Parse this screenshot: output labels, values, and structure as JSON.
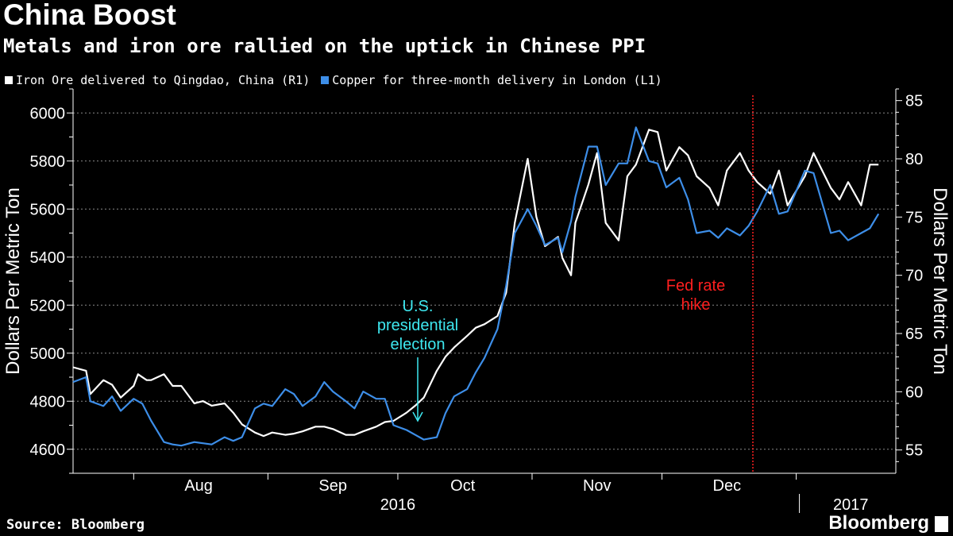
{
  "header": {
    "title": "China Boost",
    "subtitle": "Metals and iron ore rallied on the uptick in Chinese PPI"
  },
  "legend": {
    "iron_label": "Iron Ore delivered to Qingdao, China (R1)",
    "copper_label": "Copper for three-month delivery in London (L1)"
  },
  "footer": {
    "source": "Source: Bloomberg",
    "brand": "Bloomberg"
  },
  "colors": {
    "background": "#000000",
    "iron": "#ffffff",
    "copper": "#3d8ee8",
    "election_annotation": "#3ee8f0",
    "fed_annotation": "#ff1f1f",
    "grid": "#8a8a8a"
  },
  "chart_data": {
    "type": "line",
    "title": "China Boost",
    "subtitle": "Metals and iron ore rallied on the uptick in Chinese PPI",
    "xlabel": "",
    "ylabel_left": "Dollars Per Metric Ton",
    "ylabel_right": "Dollars Per Metric Ton",
    "ylim_left": [
      4500,
      6100
    ],
    "ylim_right": [
      53,
      86
    ],
    "yticks_left": [
      4600,
      4800,
      5000,
      5200,
      5400,
      5600,
      5800,
      6000
    ],
    "yticks_right": [
      55,
      60,
      65,
      70,
      75,
      80,
      85
    ],
    "x_range": [
      "2016-07-18",
      "2017-01-24"
    ],
    "xtick_months": [
      "Aug",
      "Sep",
      "Oct",
      "Nov",
      "Dec"
    ],
    "xtick_year_labels": [
      "2016",
      "2017"
    ],
    "grid": true,
    "legend_position": "top-left",
    "series": [
      {
        "name": "Iron Ore delivered to Qingdao, China (R1)",
        "axis": "right",
        "x": [
          "2016-07-18",
          "2016-07-21",
          "2016-07-22",
          "2016-07-25",
          "2016-07-27",
          "2016-07-29",
          "2016-08-01",
          "2016-08-02",
          "2016-08-04",
          "2016-08-05",
          "2016-08-08",
          "2016-08-10",
          "2016-08-12",
          "2016-08-15",
          "2016-08-17",
          "2016-08-19",
          "2016-08-22",
          "2016-08-24",
          "2016-08-26",
          "2016-08-29",
          "2016-08-31",
          "2016-09-02",
          "2016-09-05",
          "2016-09-07",
          "2016-09-09",
          "2016-09-12",
          "2016-09-14",
          "2016-09-16",
          "2016-09-19",
          "2016-09-21",
          "2016-09-23",
          "2016-09-26",
          "2016-09-28",
          "2016-09-30",
          "2016-10-03",
          "2016-10-05",
          "2016-10-07",
          "2016-10-10",
          "2016-10-12",
          "2016-10-14",
          "2016-10-17",
          "2016-10-19",
          "2016-10-21",
          "2016-10-24",
          "2016-10-26",
          "2016-10-28",
          "2016-10-31",
          "2016-11-02",
          "2016-11-04",
          "2016-11-07",
          "2016-11-08",
          "2016-11-10",
          "2016-11-11",
          "2016-11-14",
          "2016-11-16",
          "2016-11-18",
          "2016-11-21",
          "2016-11-23",
          "2016-11-25",
          "2016-11-28",
          "2016-11-30",
          "2016-12-02",
          "2016-12-05",
          "2016-12-07",
          "2016-12-09",
          "2016-12-12",
          "2016-12-14",
          "2016-12-16",
          "2016-12-19",
          "2016-12-21",
          "2016-12-23",
          "2016-12-26",
          "2016-12-28",
          "2016-12-30",
          "2017-01-03",
          "2017-01-05",
          "2017-01-09",
          "2017-01-11",
          "2017-01-13",
          "2017-01-16",
          "2017-01-18",
          "2017-01-20"
        ],
        "values": [
          62.1,
          61.8,
          59.8,
          61.0,
          60.6,
          59.5,
          60.5,
          61.5,
          61.0,
          61.0,
          61.5,
          60.5,
          60.5,
          59.0,
          59.2,
          58.8,
          59.0,
          58.2,
          57.2,
          56.5,
          56.2,
          56.5,
          56.3,
          56.4,
          56.6,
          57.0,
          57.0,
          56.8,
          56.3,
          56.3,
          56.6,
          57.0,
          57.4,
          57.5,
          58.2,
          58.8,
          59.5,
          61.8,
          63.0,
          63.8,
          64.8,
          65.5,
          65.8,
          66.5,
          68.5,
          74.5,
          80.0,
          75.0,
          72.5,
          73.3,
          71.5,
          70.0,
          74.5,
          77.8,
          80.5,
          74.5,
          73.0,
          78.5,
          79.5,
          82.5,
          82.3,
          79.0,
          81.0,
          80.3,
          78.5,
          77.5,
          76.0,
          79.0,
          80.5,
          79.0,
          78.0,
          77.0,
          79.0,
          76.0,
          78.5,
          80.5,
          77.5,
          76.5,
          78.0,
          76.0,
          79.5,
          79.5
        ]
      },
      {
        "name": "Copper for three-month delivery in London (L1)",
        "axis": "left",
        "x": [
          "2016-07-18",
          "2016-07-21",
          "2016-07-22",
          "2016-07-25",
          "2016-07-27",
          "2016-07-29",
          "2016-08-01",
          "2016-08-03",
          "2016-08-05",
          "2016-08-08",
          "2016-08-10",
          "2016-08-12",
          "2016-08-15",
          "2016-08-17",
          "2016-08-19",
          "2016-08-22",
          "2016-08-24",
          "2016-08-26",
          "2016-08-29",
          "2016-08-31",
          "2016-09-02",
          "2016-09-05",
          "2016-09-07",
          "2016-09-09",
          "2016-09-12",
          "2016-09-14",
          "2016-09-16",
          "2016-09-19",
          "2016-09-21",
          "2016-09-23",
          "2016-09-26",
          "2016-09-28",
          "2016-09-30",
          "2016-10-03",
          "2016-10-05",
          "2016-10-07",
          "2016-10-10",
          "2016-10-12",
          "2016-10-14",
          "2016-10-17",
          "2016-10-19",
          "2016-10-21",
          "2016-10-24",
          "2016-10-26",
          "2016-10-28",
          "2016-10-31",
          "2016-11-02",
          "2016-11-04",
          "2016-11-07",
          "2016-11-08",
          "2016-11-10",
          "2016-11-11",
          "2016-11-14",
          "2016-11-16",
          "2016-11-18",
          "2016-11-21",
          "2016-11-23",
          "2016-11-25",
          "2016-11-28",
          "2016-11-30",
          "2016-12-02",
          "2016-12-05",
          "2016-12-07",
          "2016-12-09",
          "2016-12-12",
          "2016-12-14",
          "2016-12-16",
          "2016-12-19",
          "2016-12-21",
          "2016-12-23",
          "2016-12-26",
          "2016-12-28",
          "2016-12-30",
          "2017-01-03",
          "2017-01-05",
          "2017-01-09",
          "2017-01-11",
          "2017-01-13",
          "2017-01-16",
          "2017-01-18",
          "2017-01-20"
        ],
        "values": [
          4880,
          4900,
          4800,
          4780,
          4820,
          4760,
          4810,
          4790,
          4720,
          4630,
          4620,
          4615,
          4630,
          4625,
          4620,
          4650,
          4635,
          4650,
          4770,
          4790,
          4780,
          4850,
          4830,
          4780,
          4820,
          4880,
          4840,
          4800,
          4770,
          4840,
          4810,
          4810,
          4700,
          4680,
          4660,
          4640,
          4650,
          4750,
          4820,
          4850,
          4920,
          4980,
          5100,
          5280,
          5500,
          5600,
          5530,
          5450,
          5480,
          5420,
          5550,
          5650,
          5860,
          5860,
          5700,
          5790,
          5790,
          5940,
          5800,
          5790,
          5690,
          5730,
          5640,
          5500,
          5510,
          5480,
          5520,
          5490,
          5530,
          5590,
          5700,
          5580,
          5590,
          5760,
          5750,
          5500,
          5510,
          5470,
          5500,
          5520,
          5580
        ]
      }
    ],
    "annotations": [
      {
        "text": "U.S. presidential election",
        "lines": [
          "U.S.",
          "presidential",
          "election"
        ],
        "x": "2016-11-08"
      },
      {
        "text": "Fed rate hike",
        "lines": [
          "Fed rate",
          "hike"
        ],
        "x": "2016-12-14"
      }
    ]
  }
}
